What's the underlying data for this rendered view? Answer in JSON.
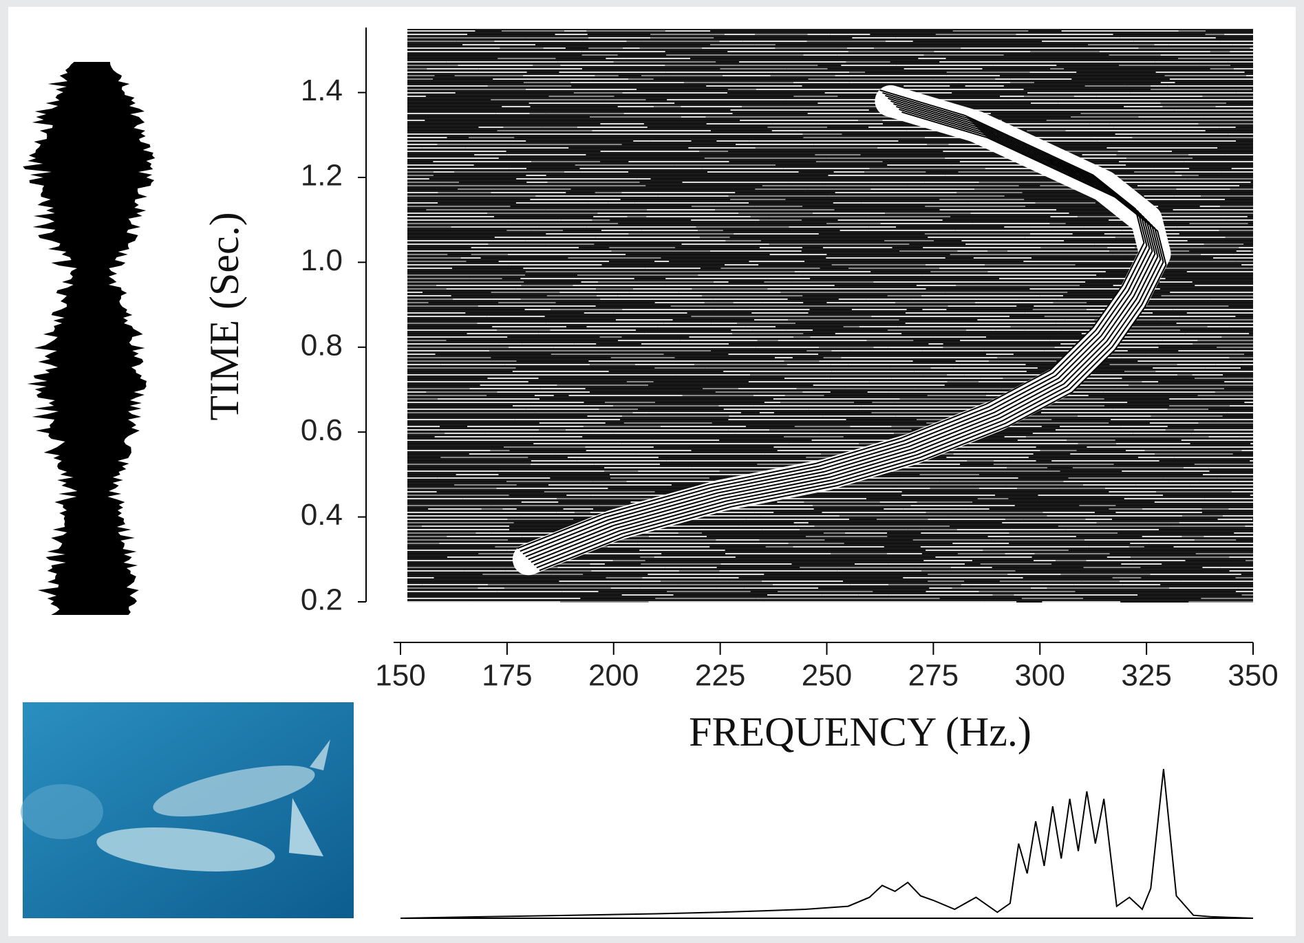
{
  "chart_data": {
    "type": "waterfall",
    "xlabel": "FREQUENCY (Hz.)",
    "ylabel": "TIME (Sec.)",
    "xlim": [
      150,
      350
    ],
    "xticks": [
      150,
      175,
      200,
      225,
      250,
      275,
      300,
      325,
      350
    ],
    "ylim": [
      0.2,
      1.55
    ],
    "yticks": [
      0.2,
      0.4,
      0.6,
      0.8,
      {
        "value": 1,
        "label": "1.0"
      },
      1.2,
      1.4
    ],
    "contour": {
      "x": [
        180,
        200,
        225,
        250,
        270,
        290,
        305,
        315,
        322,
        327,
        325,
        315,
        300,
        285,
        265
      ],
      "values": [
        0.3,
        0.38,
        0.45,
        0.5,
        0.56,
        0.64,
        0.72,
        0.82,
        0.92,
        1.02,
        1.1,
        1.18,
        1.25,
        1.32,
        1.38
      ]
    },
    "spectrum": {
      "x": [
        150,
        170,
        190,
        210,
        225,
        235,
        245,
        255,
        260,
        263,
        266,
        269,
        272,
        275,
        280,
        285,
        290,
        293,
        295,
        297,
        299,
        301,
        303,
        305,
        307,
        309,
        311,
        313,
        315,
        318,
        321,
        324,
        326,
        329,
        332,
        336,
        340,
        350
      ],
      "values": [
        0,
        1,
        2,
        3,
        4,
        5,
        6,
        8,
        14,
        22,
        18,
        24,
        15,
        12,
        6,
        14,
        4,
        10,
        50,
        30,
        65,
        35,
        75,
        40,
        80,
        45,
        85,
        50,
        80,
        8,
        14,
        6,
        20,
        100,
        15,
        2,
        1,
        0
      ]
    }
  }
}
